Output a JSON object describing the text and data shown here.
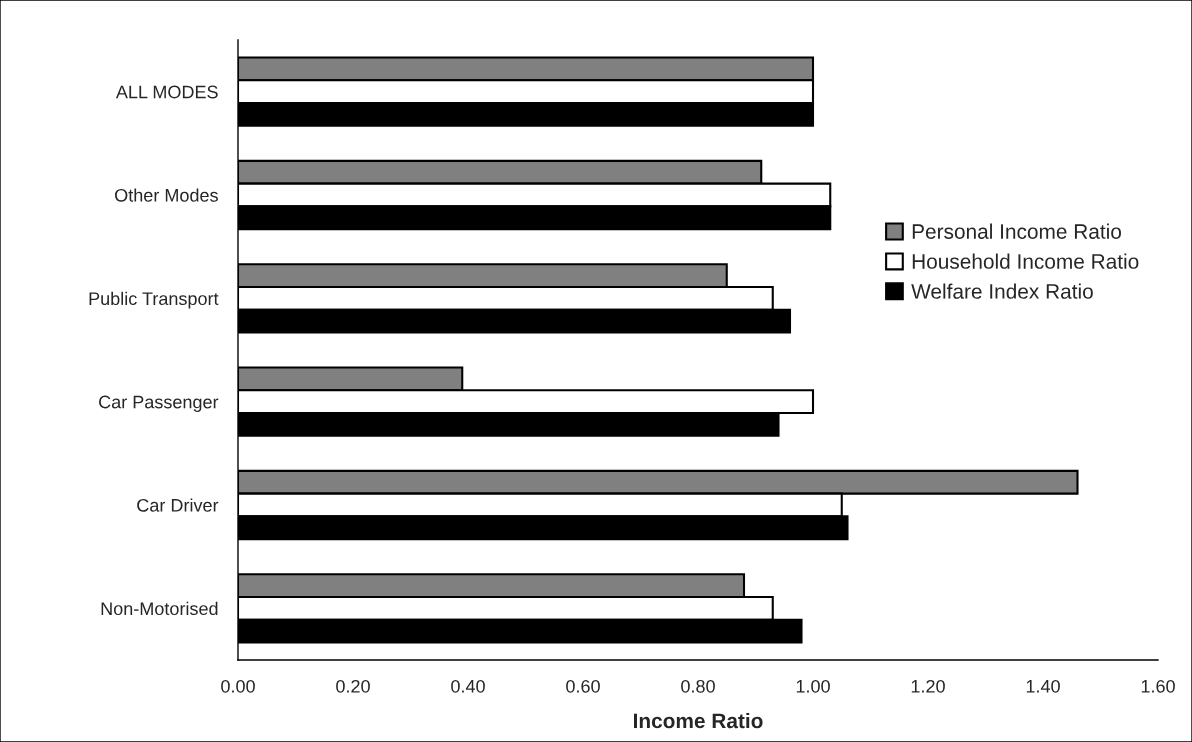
{
  "chart_data": {
    "type": "bar",
    "orientation": "horizontal",
    "xlabel": "Income Ratio",
    "categories": [
      "ALL MODES",
      "Other Modes",
      "Public Transport",
      "Car Passenger",
      "Car Driver",
      "Non-Motorised"
    ],
    "series": [
      {
        "name": "Personal Income Ratio",
        "color": "#808080",
        "values": [
          1.0,
          0.91,
          0.85,
          0.39,
          1.46,
          0.88
        ]
      },
      {
        "name": "Household Income Ratio",
        "color": "#ffffff",
        "values": [
          1.0,
          1.03,
          0.93,
          1.0,
          1.05,
          0.93
        ]
      },
      {
        "name": "Welfare Index Ratio",
        "color": "#000000",
        "values": [
          1.0,
          1.03,
          0.96,
          0.94,
          1.06,
          0.98
        ]
      }
    ],
    "xlim": [
      0,
      1.6
    ],
    "xticks": [
      {
        "value": 0,
        "label": "0.00"
      },
      {
        "value": 0.2,
        "label": "0.20"
      },
      {
        "value": 0.4,
        "label": "0.40"
      },
      {
        "value": 0.6,
        "label": "0.60"
      },
      {
        "value": 0.8,
        "label": "0.80"
      },
      {
        "value": 1.0,
        "label": "1.00"
      },
      {
        "value": 1.2,
        "label": "1.20"
      },
      {
        "value": 1.4,
        "label": "1.40"
      },
      {
        "value": 1.6,
        "label": "1.60"
      }
    ],
    "grid": false,
    "legend": "right"
  }
}
